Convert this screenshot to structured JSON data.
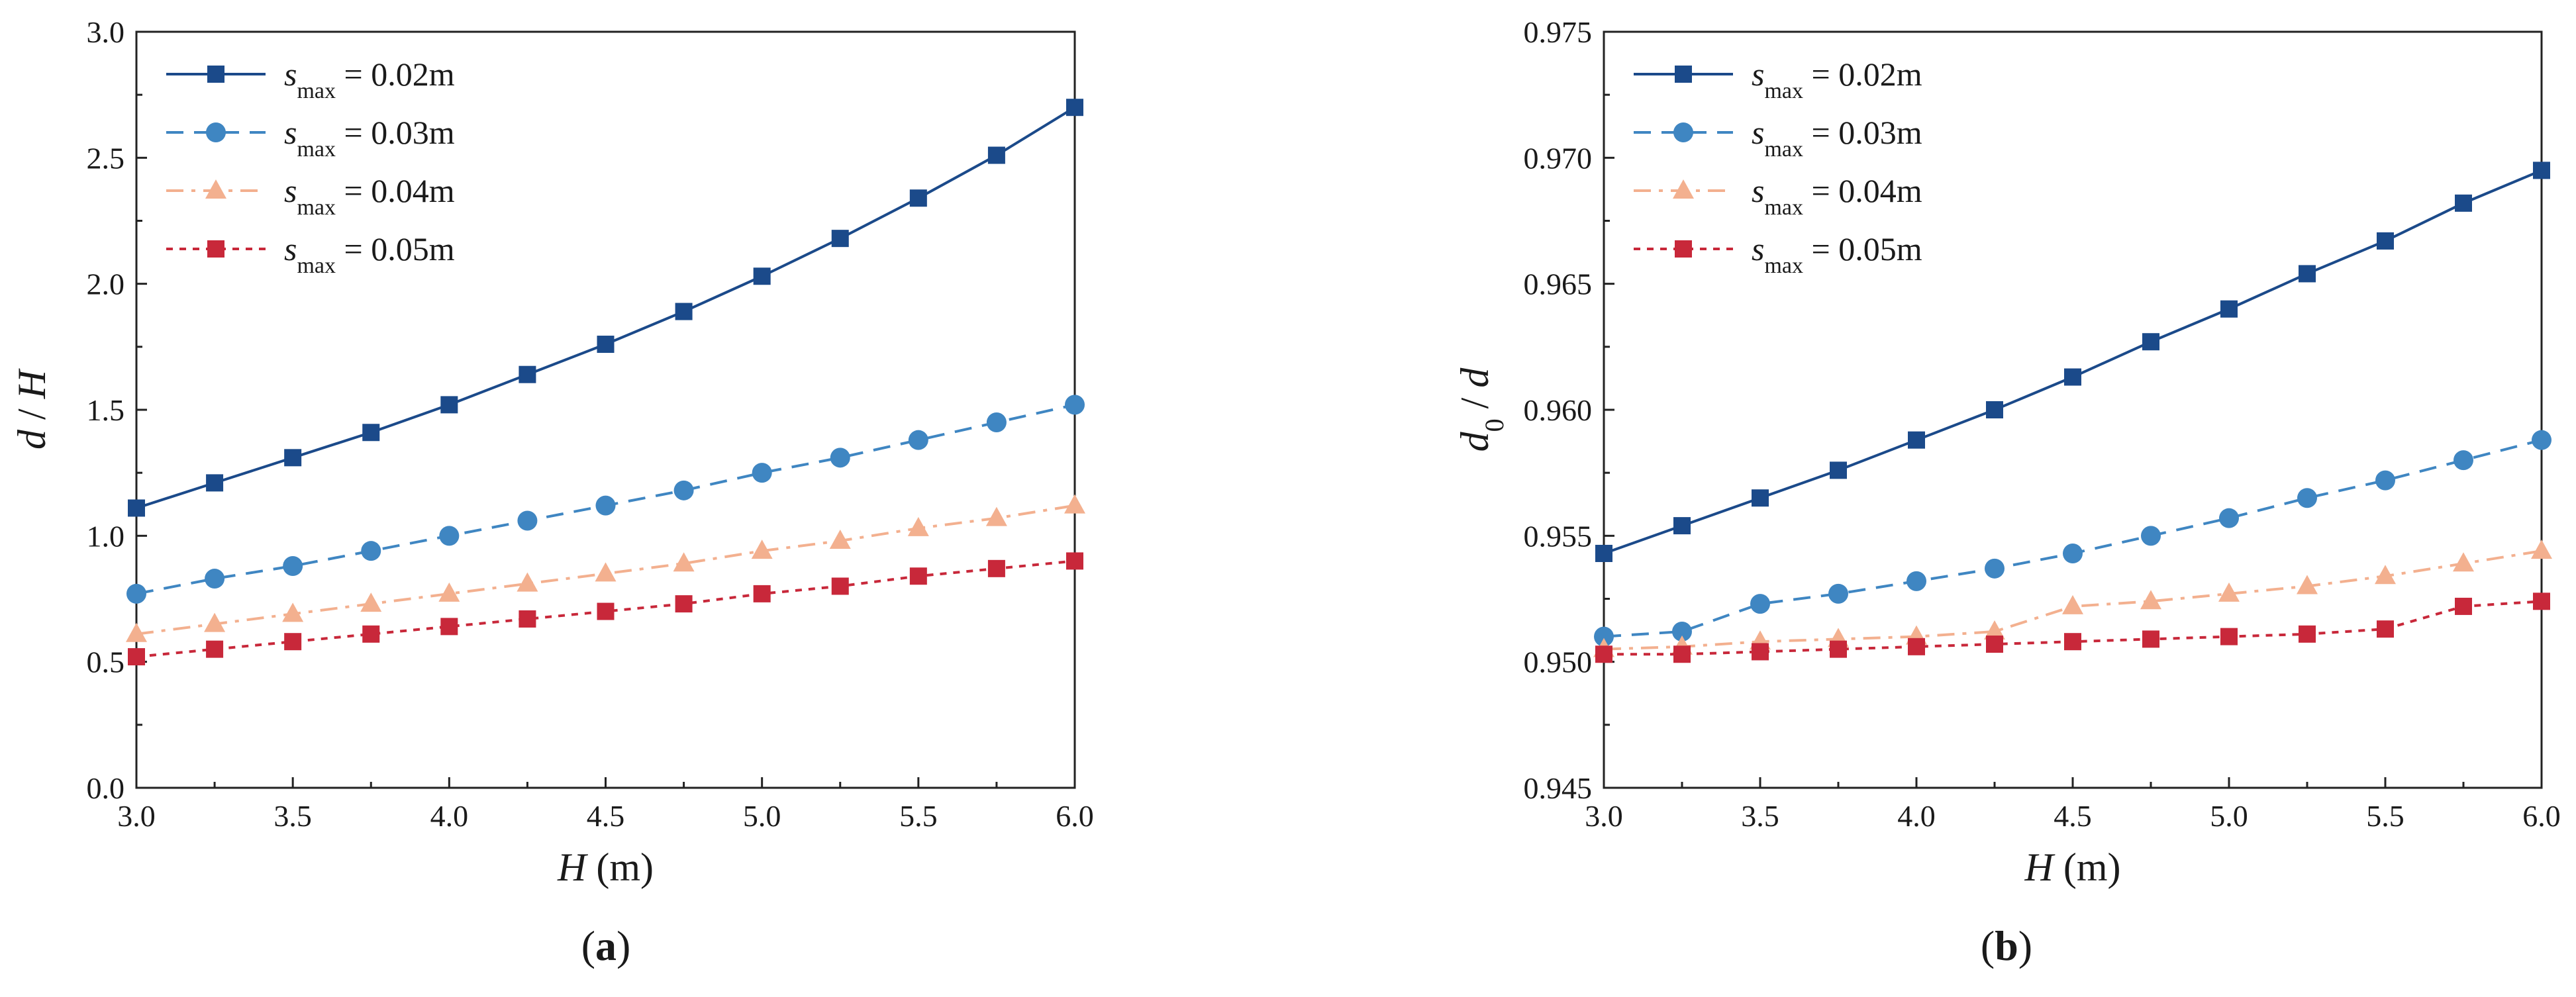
{
  "chart_data": [
    {
      "type": "line",
      "panel": "a",
      "panel_label_prefix": "(",
      "panel_label_suffix": ")",
      "xlabel_var": "H",
      "xlabel_unit": " (m)",
      "ylabel_parts": [
        {
          "text": "d",
          "italic": true
        },
        {
          "text": " / ",
          "italic": false
        },
        {
          "text": "H",
          "italic": true
        }
      ],
      "xlim": [
        3.0,
        6.0
      ],
      "ylim": [
        0.0,
        3.0
      ],
      "xticks": [
        3.0,
        3.5,
        4.0,
        4.5,
        5.0,
        5.5,
        6.0
      ],
      "xtick_labels": [
        "3.0",
        "3.5",
        "4.0",
        "4.5",
        "5.0",
        "5.5",
        "6.0"
      ],
      "yticks": [
        0.0,
        0.5,
        1.0,
        1.5,
        2.0,
        2.5,
        3.0
      ],
      "ytick_labels": [
        "0.0",
        "0.5",
        "1.0",
        "1.5",
        "2.0",
        "2.5",
        "3.0"
      ],
      "x": [
        3.0,
        3.25,
        3.5,
        3.75,
        4.0,
        4.25,
        4.5,
        4.75,
        5.0,
        5.25,
        5.5,
        5.75,
        6.0
      ],
      "legend_position": "top-left",
      "series": [
        {
          "name": "s_max = 0.02m",
          "legend_var": "s",
          "legend_sub": "max",
          "legend_value": " = 0.02m",
          "color": "#1b4a8a",
          "marker": "square",
          "dash": "solid",
          "values": [
            1.11,
            1.21,
            1.31,
            1.41,
            1.52,
            1.64,
            1.76,
            1.89,
            2.03,
            2.18,
            2.34,
            2.51,
            2.7
          ]
        },
        {
          "name": "s_max = 0.03m",
          "legend_var": "s",
          "legend_sub": "max",
          "legend_value": " = 0.03m",
          "color": "#3f86c2",
          "marker": "circle",
          "dash": "dash",
          "values": [
            0.77,
            0.83,
            0.88,
            0.94,
            1.0,
            1.06,
            1.12,
            1.18,
            1.25,
            1.31,
            1.38,
            1.45,
            1.52
          ]
        },
        {
          "name": "s_max = 0.04m",
          "legend_var": "s",
          "legend_sub": "max",
          "legend_value": " = 0.04m",
          "color": "#f3b08f",
          "marker": "triangle",
          "dash": "dashdot",
          "values": [
            0.61,
            0.65,
            0.69,
            0.73,
            0.77,
            0.81,
            0.85,
            0.89,
            0.94,
            0.98,
            1.03,
            1.07,
            1.12
          ]
        },
        {
          "name": "s_max = 0.05m",
          "legend_var": "s",
          "legend_sub": "max",
          "legend_value": " = 0.05m",
          "color": "#c8283a",
          "marker": "square",
          "dash": "dot",
          "values": [
            0.52,
            0.55,
            0.58,
            0.61,
            0.64,
            0.67,
            0.7,
            0.73,
            0.77,
            0.8,
            0.84,
            0.87,
            0.9
          ]
        }
      ]
    },
    {
      "type": "line",
      "panel": "b",
      "panel_label_prefix": "(",
      "panel_label_suffix": ")",
      "xlabel_var": "H",
      "xlabel_unit": " (m)",
      "ylabel_parts": [
        {
          "text": "d",
          "italic": true
        },
        {
          "text": "0",
          "italic": false,
          "sub": true
        },
        {
          "text": " / ",
          "italic": false
        },
        {
          "text": "d",
          "italic": true
        }
      ],
      "xlim": [
        3.0,
        6.0
      ],
      "ylim": [
        0.945,
        0.975
      ],
      "xticks": [
        3.0,
        3.5,
        4.0,
        4.5,
        5.0,
        5.5,
        6.0
      ],
      "xtick_labels": [
        "3.0",
        "3.5",
        "4.0",
        "4.5",
        "5.0",
        "5.5",
        "6.0"
      ],
      "yticks": [
        0.945,
        0.95,
        0.955,
        0.96,
        0.965,
        0.97,
        0.975
      ],
      "ytick_labels": [
        "0.945",
        "0.950",
        "0.955",
        "0.960",
        "0.965",
        "0.970",
        "0.975"
      ],
      "x": [
        3.0,
        3.25,
        3.5,
        3.75,
        4.0,
        4.25,
        4.5,
        4.75,
        5.0,
        5.25,
        5.5,
        5.75,
        6.0
      ],
      "legend_position": "top-left",
      "series": [
        {
          "name": "s_max = 0.02m",
          "legend_var": "s",
          "legend_sub": "max",
          "legend_value": " = 0.02m",
          "color": "#1b4a8a",
          "marker": "square",
          "dash": "solid",
          "values": [
            0.9543,
            0.9554,
            0.9565,
            0.9576,
            0.9588,
            0.96,
            0.9613,
            0.9627,
            0.964,
            0.9654,
            0.9667,
            0.9682,
            0.9695
          ]
        },
        {
          "name": "s_max = 0.03m",
          "legend_var": "s",
          "legend_sub": "max",
          "legend_value": " = 0.03m",
          "color": "#3f86c2",
          "marker": "circle",
          "dash": "dash",
          "values": [
            0.951,
            0.9512,
            0.9523,
            0.9527,
            0.9532,
            0.9537,
            0.9543,
            0.955,
            0.9557,
            0.9565,
            0.9572,
            0.958,
            0.9588
          ]
        },
        {
          "name": "s_max = 0.04m",
          "legend_var": "s",
          "legend_sub": "max",
          "legend_value": " = 0.04m",
          "color": "#f3b08f",
          "marker": "triangle",
          "dash": "dashdot",
          "values": [
            0.9505,
            0.9506,
            0.9508,
            0.9509,
            0.951,
            0.9512,
            0.9522,
            0.9524,
            0.9527,
            0.953,
            0.9534,
            0.9539,
            0.9544
          ]
        },
        {
          "name": "s_max = 0.05m",
          "legend_var": "s",
          "legend_sub": "max",
          "legend_value": " = 0.05m",
          "color": "#c8283a",
          "marker": "square",
          "dash": "dot",
          "values": [
            0.9503,
            0.9503,
            0.9504,
            0.9505,
            0.9506,
            0.9507,
            0.9508,
            0.9509,
            0.951,
            0.9511,
            0.9513,
            0.9522,
            0.9524
          ]
        }
      ]
    }
  ]
}
